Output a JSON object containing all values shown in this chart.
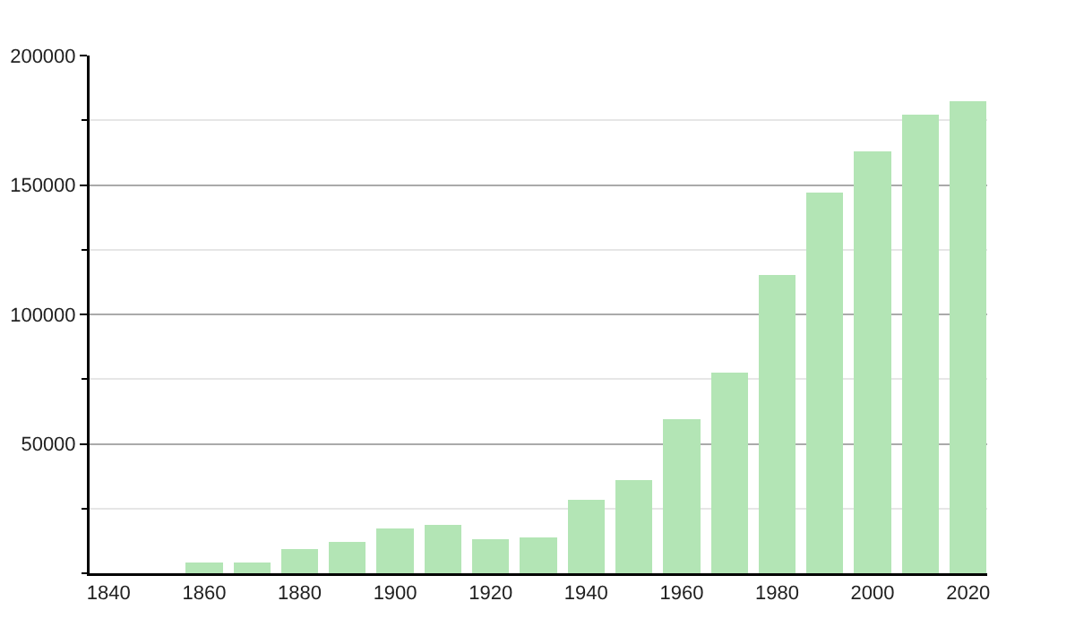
{
  "chart_data": {
    "type": "bar",
    "x": [
      1860,
      1870,
      1880,
      1890,
      1900,
      1910,
      1920,
      1930,
      1940,
      1950,
      1960,
      1970,
      1980,
      1990,
      2000,
      2010,
      2020
    ],
    "values": [
      4100,
      4100,
      9200,
      12000,
      17300,
      18700,
      13100,
      13800,
      28300,
      35900,
      59400,
      77400,
      115200,
      147000,
      163100,
      177000,
      182500
    ],
    "color": "#b3e5b5",
    "xlim": [
      1836,
      2024
    ],
    "xticks": [
      1840,
      1860,
      1880,
      1900,
      1920,
      1940,
      1960,
      1980,
      2000,
      2020
    ],
    "ylim": [
      0,
      200000
    ],
    "yticks": [
      {
        "value": 0,
        "label": null
      },
      {
        "value": 25000,
        "label": null
      },
      50000,
      {
        "value": 75000,
        "label": null
      },
      100000,
      {
        "value": 125000,
        "label": null
      },
      150000,
      {
        "value": 175000,
        "label": null
      },
      200000
    ],
    "grid": "y"
  }
}
